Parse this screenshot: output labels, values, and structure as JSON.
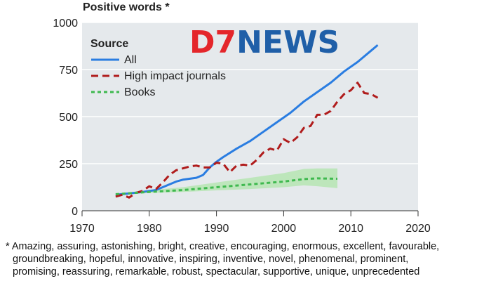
{
  "chart_data": {
    "type": "line",
    "title": "Positive words *",
    "xlabel": "",
    "ylabel": "",
    "xlim": [
      1970,
      2020
    ],
    "ylim": [
      0,
      1000
    ],
    "xticks": [
      1970,
      1980,
      1990,
      2000,
      2010,
      2020
    ],
    "yticks": [
      0,
      250,
      500,
      750,
      1000
    ],
    "grid": true,
    "legend": {
      "title": "Source",
      "position": "top-left"
    },
    "series": [
      {
        "name": "All",
        "style": "solid",
        "color": "#2a7de1",
        "x": [
          1975,
          1977,
          1979,
          1981,
          1982,
          1983,
          1984,
          1985,
          1987,
          1988,
          1989,
          1990,
          1991,
          1993,
          1995,
          1997,
          1999,
          2001,
          2003,
          2005,
          2007,
          2009,
          2011,
          2013,
          2014
        ],
        "y": [
          85,
          92,
          100,
          110,
          125,
          140,
          155,
          165,
          175,
          190,
          230,
          260,
          285,
          330,
          370,
          420,
          470,
          520,
          580,
          630,
          680,
          740,
          790,
          850,
          880
        ]
      },
      {
        "name": "High impact journals",
        "style": "dashed",
        "color": "#b01c1c",
        "x": [
          1975,
          1976,
          1977,
          1978,
          1979,
          1980,
          1981,
          1982,
          1983,
          1984,
          1985,
          1986,
          1987,
          1988,
          1989,
          1990,
          1991,
          1992,
          1993,
          1994,
          1995,
          1996,
          1997,
          1998,
          1999,
          2000,
          2001,
          2002,
          2003,
          2004,
          2005,
          2006,
          2007,
          2008,
          2009,
          2010,
          2011,
          2012,
          2013,
          2014
        ],
        "y": [
          75,
          85,
          70,
          95,
          105,
          130,
          115,
          150,
          190,
          215,
          225,
          235,
          240,
          230,
          230,
          255,
          250,
          205,
          240,
          245,
          240,
          270,
          310,
          330,
          320,
          380,
          360,
          390,
          440,
          450,
          510,
          510,
          530,
          580,
          620,
          640,
          680,
          625,
          620,
          600
        ]
      },
      {
        "name": "Books",
        "style": "dotted",
        "color": "#3fb94f",
        "x": [
          1975,
          1980,
          1985,
          1990,
          1995,
          2000,
          2003,
          2005,
          2008
        ],
        "y": [
          88,
          100,
          110,
          125,
          140,
          155,
          168,
          172,
          170
        ],
        "band_upper": [
          92,
          108,
          125,
          150,
          175,
          200,
          222,
          225,
          225
        ],
        "band_lower": [
          84,
          94,
          100,
          108,
          115,
          125,
          135,
          130,
          120
        ]
      }
    ],
    "footnote": {
      "lines": [
        "* Amazing, assuring, astonishing, bright, creative, encouraging, enormous,  excellent, favourable,",
        "groundbreaking, hopeful, innovative, inspiring, inventive, novel, phenomenal, prominent,",
        "promising, reassuring, remarkable, robust, spectacular, supportive, unique, unprecedented"
      ]
    },
    "watermark": {
      "text_prefix": "D7",
      "text_suffix": "NEWS",
      "prefix_color": "#e4262b",
      "suffix_color": "#1f5fa8"
    },
    "colors": {
      "plot_bg": "#e5e9ec",
      "grid": "#ffffff",
      "axis": "#333333"
    }
  }
}
